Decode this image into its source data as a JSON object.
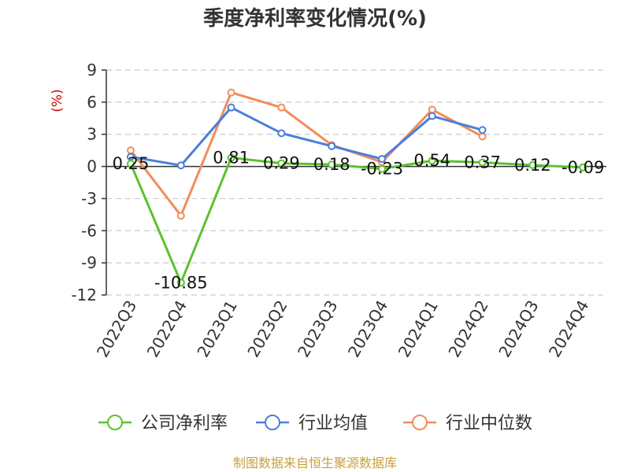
{
  "colors": {
    "company": "#5cc22f",
    "industry_avg": "#4b7fd9",
    "industry_median": "#f28c5a",
    "axis": "#333333",
    "grid": "#cccccc",
    "ylabel": "#cc0000",
    "source": "#c8a03c"
  },
  "chart_data": {
    "type": "line",
    "title": "季度净利率变化情况(%)",
    "ylabel": "(%)",
    "xlabel": "",
    "ylim": [
      -12,
      9
    ],
    "yticks": [
      9,
      6,
      3,
      0,
      -3,
      -6,
      -9,
      -12
    ],
    "grid": true,
    "legend_position": "bottom",
    "categories": [
      "2022Q3",
      "2022Q4",
      "2023Q1",
      "2023Q2",
      "2023Q3",
      "2023Q4",
      "2024Q1",
      "2024Q2",
      "2024Q3",
      "2024Q4"
    ],
    "series": [
      {
        "name": "公司净利率",
        "key": "company",
        "values": [
          0.25,
          -10.85,
          0.81,
          0.29,
          0.18,
          -0.23,
          0.54,
          0.37,
          0.12,
          -0.09
        ],
        "labels": [
          "0.25",
          "-10.85",
          "0.81",
          "0.29",
          "0.18",
          "-0.23",
          "0.54",
          "0.37",
          "0.12",
          "-0.09"
        ]
      },
      {
        "name": "行业均值",
        "key": "industry_avg",
        "values": [
          0.9,
          0.1,
          5.5,
          3.1,
          1.9,
          0.7,
          4.7,
          3.4,
          null,
          null
        ]
      },
      {
        "name": "行业中位数",
        "key": "industry_median",
        "values": [
          1.5,
          -4.6,
          6.9,
          5.5,
          2.0,
          0.4,
          5.3,
          2.8,
          null,
          null
        ]
      }
    ]
  },
  "source_text": "制图数据来自恒生聚源数据库"
}
